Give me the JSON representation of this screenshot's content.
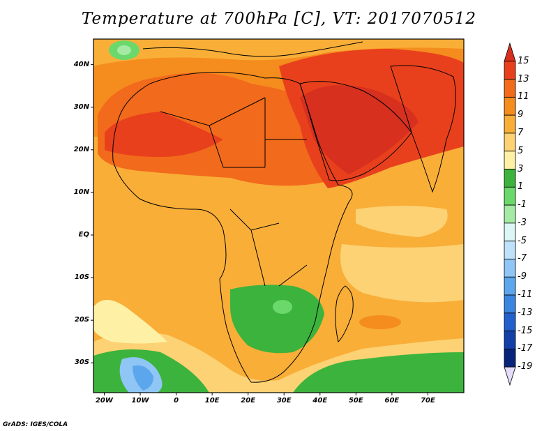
{
  "title": "Temperature at 700hPa [C], VT: 2017070512",
  "credit": "GrADS: IGES/COLA",
  "map": {
    "lon_range": [
      -23,
      80
    ],
    "lat_range": [
      -37,
      46
    ],
    "y_ticks": [
      {
        "lat": 40,
        "label": "40N"
      },
      {
        "lat": 30,
        "label": "30N"
      },
      {
        "lat": 20,
        "label": "20N"
      },
      {
        "lat": 10,
        "label": "10N"
      },
      {
        "lat": 0,
        "label": "EQ"
      },
      {
        "lat": -10,
        "label": "10S"
      },
      {
        "lat": -20,
        "label": "20S"
      },
      {
        "lat": -30,
        "label": "30S"
      }
    ],
    "x_ticks": [
      {
        "lon": -20,
        "label": "20W"
      },
      {
        "lon": -10,
        "label": "10W"
      },
      {
        "lon": 0,
        "label": "0"
      },
      {
        "lon": 10,
        "label": "10E"
      },
      {
        "lon": 20,
        "label": "20E"
      },
      {
        "lon": 30,
        "label": "30E"
      },
      {
        "lon": 40,
        "label": "40E"
      },
      {
        "lon": 50,
        "label": "50E"
      },
      {
        "lon": 60,
        "label": "60E"
      },
      {
        "lon": 70,
        "label": "70E"
      }
    ]
  },
  "colorbar": {
    "labels": [
      "15",
      "13",
      "11",
      "9",
      "7",
      "5",
      "3",
      "1",
      "-1",
      "-3",
      "-5",
      "-7",
      "-9",
      "-11",
      "-13",
      "-15",
      "-17",
      "-19"
    ],
    "colors": [
      "#d7301f",
      "#e8401c",
      "#f26a1b",
      "#f58c1e",
      "#f9ae38",
      "#fcd274",
      "#fef1a6",
      "#3cb33c",
      "#6bd86b",
      "#a4eaa4",
      "#dcf5f5",
      "#bfe1fa",
      "#8fc6f5",
      "#5ca6ed",
      "#3a85e0",
      "#2261cc",
      "#1340a8",
      "#07237a",
      "#e4dcf8"
    ]
  }
}
